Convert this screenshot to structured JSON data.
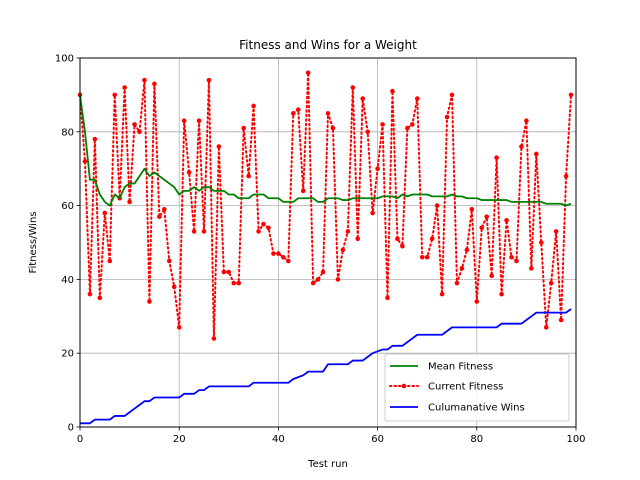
{
  "chart_data": {
    "type": "line",
    "title": "Fitness and Wins for a Weight",
    "xlabel": "Test run",
    "ylabel": "Fitness/Wins",
    "xlim": [
      0,
      100
    ],
    "ylim": [
      0,
      100
    ],
    "xticks": [
      0,
      20,
      40,
      60,
      80,
      100
    ],
    "yticks": [
      0,
      20,
      40,
      60,
      80,
      100
    ],
    "grid": true,
    "legend_position": "lower right",
    "series": [
      {
        "name": "Mean Fitness",
        "color": "#008000",
        "style": "solid",
        "points": [
          [
            0,
            90
          ],
          [
            1,
            80
          ],
          [
            2,
            67
          ],
          [
            3,
            67
          ],
          [
            4,
            63
          ],
          [
            5,
            61
          ],
          [
            6,
            60
          ],
          [
            7,
            63
          ],
          [
            8,
            62
          ],
          [
            9,
            65
          ],
          [
            10,
            66
          ],
          [
            11,
            66
          ],
          [
            12,
            68
          ],
          [
            13,
            70
          ],
          [
            14,
            68
          ],
          [
            15,
            69
          ],
          [
            16,
            68
          ],
          [
            17,
            67
          ],
          [
            18,
            66
          ],
          [
            19,
            65
          ],
          [
            20,
            63
          ],
          [
            21,
            64
          ],
          [
            22,
            64
          ],
          [
            23,
            65
          ],
          [
            24,
            64
          ],
          [
            25,
            65
          ],
          [
            26,
            65
          ],
          [
            27,
            64
          ],
          [
            28,
            64
          ],
          [
            29,
            64
          ],
          [
            30,
            63
          ],
          [
            31,
            63
          ],
          [
            32,
            62
          ],
          [
            33,
            62
          ],
          [
            34,
            62
          ],
          [
            35,
            63
          ],
          [
            36,
            63
          ],
          [
            37,
            63
          ],
          [
            38,
            62
          ],
          [
            39,
            62
          ],
          [
            40,
            62
          ],
          [
            41,
            61
          ],
          [
            42,
            61
          ],
          [
            43,
            61
          ],
          [
            44,
            62
          ],
          [
            45,
            62
          ],
          [
            46,
            62
          ],
          [
            47,
            62
          ],
          [
            48,
            61
          ],
          [
            49,
            61
          ],
          [
            50,
            62
          ],
          [
            51,
            62
          ],
          [
            52,
            62
          ],
          [
            53,
            61.5
          ],
          [
            54,
            61.5
          ],
          [
            55,
            62
          ],
          [
            56,
            62
          ],
          [
            57,
            62
          ],
          [
            58,
            62
          ],
          [
            59,
            62
          ],
          [
            60,
            62
          ],
          [
            61,
            62.5
          ],
          [
            62,
            62.5
          ],
          [
            63,
            62.5
          ],
          [
            64,
            62
          ],
          [
            65,
            63
          ],
          [
            66,
            62.5
          ],
          [
            67,
            63
          ],
          [
            68,
            63
          ],
          [
            69,
            63
          ],
          [
            70,
            63
          ],
          [
            71,
            62.5
          ],
          [
            72,
            62.5
          ],
          [
            73,
            62.5
          ],
          [
            74,
            62.5
          ],
          [
            75,
            63
          ],
          [
            76,
            62.5
          ],
          [
            77,
            62.5
          ],
          [
            78,
            62
          ],
          [
            79,
            62
          ],
          [
            80,
            62
          ],
          [
            81,
            61.5
          ],
          [
            82,
            61.5
          ],
          [
            83,
            61.5
          ],
          [
            84,
            61.5
          ],
          [
            85,
            61.5
          ],
          [
            86,
            61.5
          ],
          [
            87,
            61
          ],
          [
            88,
            61
          ],
          [
            89,
            61
          ],
          [
            90,
            61
          ],
          [
            91,
            61
          ],
          [
            92,
            61
          ],
          [
            93,
            61
          ],
          [
            94,
            60.5
          ],
          [
            95,
            60.5
          ],
          [
            96,
            60.5
          ],
          [
            97,
            60.5
          ],
          [
            98,
            60
          ],
          [
            99,
            60.5
          ]
        ]
      },
      {
        "name": "Current Fitness",
        "color": "#ff0000",
        "style": "dotted",
        "marker": "circle",
        "points": [
          [
            0,
            90
          ],
          [
            1,
            72
          ],
          [
            2,
            36
          ],
          [
            3,
            78
          ],
          [
            4,
            35
          ],
          [
            5,
            58
          ],
          [
            6,
            45
          ],
          [
            7,
            90
          ],
          [
            8,
            62
          ],
          [
            9,
            92
          ],
          [
            10,
            61
          ],
          [
            11,
            82
          ],
          [
            12,
            80
          ],
          [
            13,
            94
          ],
          [
            14,
            34
          ],
          [
            15,
            93
          ],
          [
            16,
            57
          ],
          [
            17,
            59
          ],
          [
            18,
            45
          ],
          [
            19,
            38
          ],
          [
            20,
            27
          ],
          [
            21,
            83
          ],
          [
            22,
            69
          ],
          [
            23,
            53
          ],
          [
            24,
            83
          ],
          [
            25,
            53
          ],
          [
            26,
            94
          ],
          [
            27,
            24
          ],
          [
            28,
            76
          ],
          [
            29,
            42
          ],
          [
            30,
            42
          ],
          [
            31,
            39
          ],
          [
            32,
            39
          ],
          [
            33,
            81
          ],
          [
            34,
            68
          ],
          [
            35,
            87
          ],
          [
            36,
            53
          ],
          [
            37,
            55
          ],
          [
            38,
            54
          ],
          [
            39,
            47
          ],
          [
            40,
            47
          ],
          [
            41,
            46
          ],
          [
            42,
            45
          ],
          [
            43,
            85
          ],
          [
            44,
            86
          ],
          [
            45,
            64
          ],
          [
            46,
            96
          ],
          [
            47,
            39
          ],
          [
            48,
            40
          ],
          [
            49,
            42
          ],
          [
            50,
            85
          ],
          [
            51,
            81
          ],
          [
            52,
            40
          ],
          [
            53,
            48
          ],
          [
            54,
            53
          ],
          [
            55,
            92
          ],
          [
            56,
            51
          ],
          [
            57,
            89
          ],
          [
            58,
            80
          ],
          [
            59,
            58
          ],
          [
            60,
            70
          ],
          [
            61,
            82
          ],
          [
            62,
            35
          ],
          [
            63,
            91
          ],
          [
            64,
            51
          ],
          [
            65,
            49
          ],
          [
            66,
            81
          ],
          [
            67,
            82
          ],
          [
            68,
            89
          ],
          [
            69,
            46
          ],
          [
            70,
            46
          ],
          [
            71,
            51
          ],
          [
            72,
            60
          ],
          [
            73,
            36
          ],
          [
            74,
            84
          ],
          [
            75,
            90
          ],
          [
            76,
            39
          ],
          [
            77,
            43
          ],
          [
            78,
            48
          ],
          [
            79,
            59
          ],
          [
            80,
            34
          ],
          [
            81,
            54
          ],
          [
            82,
            57
          ],
          [
            83,
            41
          ],
          [
            84,
            73
          ],
          [
            85,
            36
          ],
          [
            86,
            56
          ],
          [
            87,
            46
          ],
          [
            88,
            45
          ],
          [
            89,
            76
          ],
          [
            90,
            83
          ],
          [
            91,
            43
          ],
          [
            92,
            74
          ],
          [
            93,
            50
          ],
          [
            94,
            27
          ],
          [
            95,
            39
          ],
          [
            96,
            53
          ],
          [
            97,
            29
          ],
          [
            98,
            68
          ],
          [
            99,
            90
          ]
        ]
      },
      {
        "name": "Culumanative Wins",
        "color": "#0000ff",
        "style": "solid",
        "points": [
          [
            0,
            1
          ],
          [
            2,
            1
          ],
          [
            3,
            2
          ],
          [
            6,
            2
          ],
          [
            7,
            3
          ],
          [
            9,
            3
          ],
          [
            10,
            4
          ],
          [
            11,
            5
          ],
          [
            12,
            6
          ],
          [
            13,
            7
          ],
          [
            14,
            7
          ],
          [
            15,
            8
          ],
          [
            20,
            8
          ],
          [
            21,
            9
          ],
          [
            23,
            9
          ],
          [
            24,
            10
          ],
          [
            25,
            10
          ],
          [
            26,
            11
          ],
          [
            34,
            11
          ],
          [
            35,
            12
          ],
          [
            42,
            12
          ],
          [
            43,
            13
          ],
          [
            45,
            14
          ],
          [
            46,
            15
          ],
          [
            49,
            15
          ],
          [
            50,
            17
          ],
          [
            54,
            17
          ],
          [
            55,
            18
          ],
          [
            57,
            18
          ],
          [
            58,
            19
          ],
          [
            59,
            20
          ],
          [
            61,
            21
          ],
          [
            62,
            21
          ],
          [
            63,
            22
          ],
          [
            65,
            22
          ],
          [
            66,
            23
          ],
          [
            67,
            24
          ],
          [
            68,
            25
          ],
          [
            73,
            25
          ],
          [
            74,
            26
          ],
          [
            75,
            27
          ],
          [
            84,
            27
          ],
          [
            85,
            28
          ],
          [
            89,
            28
          ],
          [
            90,
            29
          ],
          [
            91,
            30
          ],
          [
            92,
            31
          ],
          [
            98,
            31
          ],
          [
            99,
            32
          ]
        ]
      }
    ]
  }
}
